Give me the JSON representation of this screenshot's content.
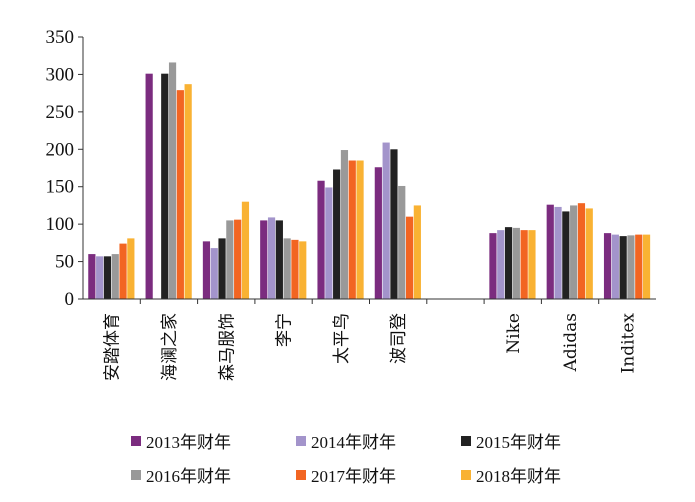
{
  "chart_data": {
    "type": "bar",
    "title": "",
    "xlabel": "",
    "ylabel": "",
    "ylim": [
      0,
      350
    ],
    "yticks": [
      0,
      50,
      100,
      150,
      200,
      250,
      300,
      350
    ],
    "grid": false,
    "legend_position": "bottom",
    "categories": [
      "安踏体育",
      "海澜之家",
      "森马服饰",
      "李宁",
      "太平鸟",
      "波司登",
      "",
      "Nike",
      "Adidas",
      "Inditex"
    ],
    "series": [
      {
        "name": "2013年财年",
        "color": "#7B2C7F",
        "values": [
          60,
          301,
          77,
          105,
          158,
          176,
          null,
          88,
          126,
          88
        ]
      },
      {
        "name": "2014年财年",
        "color": "#A394CB",
        "values": [
          57,
          null,
          68,
          109,
          149,
          209,
          null,
          92,
          123,
          86
        ]
      },
      {
        "name": "2015年财年",
        "color": "#222222",
        "values": [
          57,
          301,
          81,
          105,
          173,
          200,
          null,
          96,
          117,
          84
        ]
      },
      {
        "name": "2016年财年",
        "color": "#999999",
        "values": [
          60,
          316,
          105,
          81,
          199,
          151,
          null,
          95,
          125,
          85
        ]
      },
      {
        "name": "2017年财年",
        "color": "#F26522",
        "values": [
          74,
          279,
          106,
          79,
          185,
          110,
          null,
          92,
          128,
          86
        ]
      },
      {
        "name": "2018年财年",
        "color": "#F9B233",
        "values": [
          81,
          287,
          130,
          77,
          185,
          125,
          null,
          92,
          121,
          86
        ]
      }
    ]
  }
}
